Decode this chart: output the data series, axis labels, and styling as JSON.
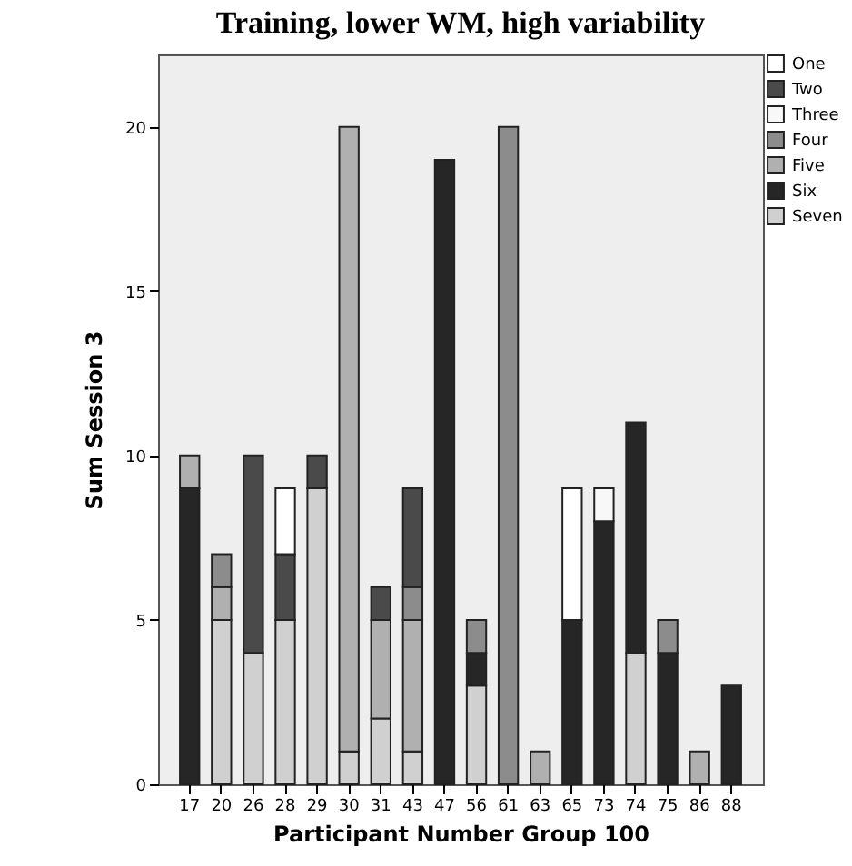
{
  "chart_data": {
    "type": "bar",
    "title": "Training, lower WM, high variability",
    "xlabel": "Participant Number Group 100",
    "ylabel": "Sum Session 3",
    "categories": [
      "17",
      "20",
      "26",
      "28",
      "29",
      "30",
      "31",
      "43",
      "47",
      "56",
      "61",
      "63",
      "65",
      "73",
      "74",
      "75",
      "86",
      "88"
    ],
    "stacked": true,
    "ylim": [
      0,
      22.2
    ],
    "yticks": [
      0,
      5,
      10,
      15,
      20
    ],
    "grid": false,
    "legend": "right",
    "series": [
      {
        "name": "Seven",
        "color": "#d0d0d0",
        "values": [
          null,
          5,
          4,
          5,
          9,
          1,
          2,
          1,
          null,
          3,
          null,
          null,
          null,
          null,
          4,
          null,
          null,
          null
        ]
      },
      {
        "name": "Six",
        "color": "#262626",
        "values": [
          9,
          null,
          null,
          null,
          null,
          null,
          null,
          null,
          19,
          1,
          null,
          null,
          5,
          8,
          7,
          4,
          null,
          3
        ]
      },
      {
        "name": "Five",
        "color": "#b0b0b0",
        "values": [
          1,
          1,
          null,
          null,
          null,
          19,
          3,
          4,
          null,
          null,
          null,
          1,
          null,
          null,
          null,
          null,
          1,
          null
        ]
      },
      {
        "name": "Four",
        "color": "#8c8c8c",
        "values": [
          null,
          1,
          null,
          null,
          null,
          null,
          null,
          1,
          null,
          1,
          20,
          null,
          null,
          null,
          null,
          1,
          null,
          null
        ]
      },
      {
        "name": "Three",
        "color": "#f8f8f8",
        "values": [
          null,
          null,
          null,
          null,
          null,
          null,
          null,
          null,
          null,
          null,
          null,
          null,
          null,
          1,
          null,
          null,
          null,
          null
        ]
      },
      {
        "name": "Two",
        "color": "#4a4a4a",
        "values": [
          null,
          null,
          6,
          2,
          1,
          null,
          1,
          3,
          null,
          null,
          null,
          null,
          null,
          null,
          null,
          null,
          null,
          null
        ]
      },
      {
        "name": "One",
        "color": "#ffffff",
        "values": [
          null,
          null,
          null,
          2,
          null,
          null,
          null,
          null,
          null,
          null,
          null,
          null,
          4,
          null,
          null,
          null,
          null,
          null
        ]
      }
    ]
  }
}
